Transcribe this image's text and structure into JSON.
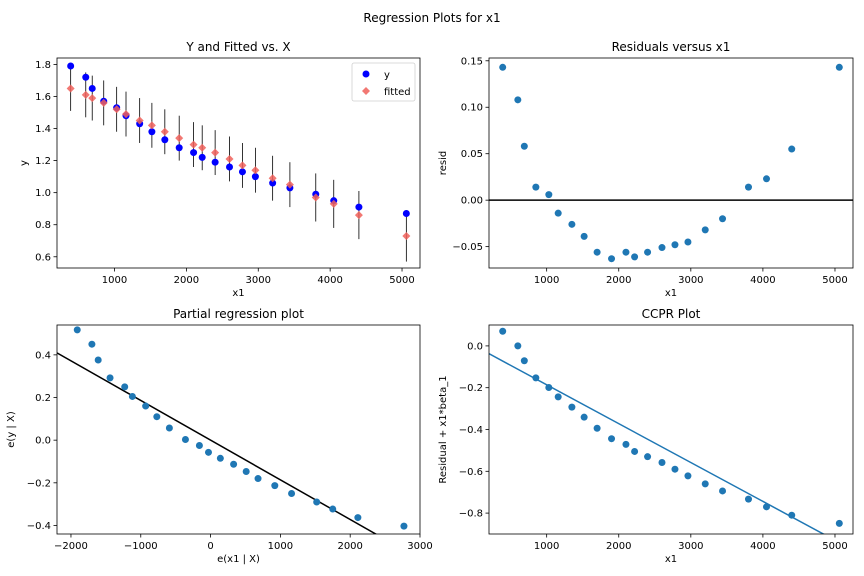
{
  "suptitle": "Regression Plots for x1",
  "colors": {
    "y": "#0000ff",
    "fitted": "#f0605a",
    "scatter": "#1f77b4",
    "line_black": "#000000",
    "line_blue": "#1f77b4"
  },
  "chart_data": [
    {
      "id": "yfit",
      "type": "scatter",
      "title": "Y and Fitted vs. X",
      "xlabel": "x1",
      "ylabel": "y",
      "xlim": [
        200,
        5250
      ],
      "ylim": [
        0.53,
        1.84
      ],
      "xticks": [
        1000,
        2000,
        3000,
        4000,
        5000
      ],
      "yticks": [
        0.6,
        0.8,
        1.0,
        1.2,
        1.4,
        1.6,
        1.8
      ],
      "ytick_labels": [
        "0.6",
        "0.8",
        "1.0",
        "1.2",
        "1.4",
        "1.6",
        "1.8"
      ],
      "legend": {
        "position": "top-right",
        "entries": [
          "y",
          "fitted"
        ]
      },
      "x": [
        390,
        600,
        690,
        850,
        1030,
        1160,
        1350,
        1520,
        1700,
        1900,
        2100,
        2220,
        2400,
        2600,
        2780,
        2960,
        3200,
        3440,
        3800,
        4050,
        4400,
        5060
      ],
      "series": [
        {
          "name": "y",
          "marker": "circle",
          "values": [
            1.79,
            1.72,
            1.65,
            1.57,
            1.53,
            1.48,
            1.43,
            1.38,
            1.33,
            1.28,
            1.25,
            1.22,
            1.19,
            1.16,
            1.13,
            1.1,
            1.06,
            1.03,
            0.99,
            0.95,
            0.91,
            0.87
          ]
        },
        {
          "name": "fitted",
          "marker": "diamond",
          "values": [
            1.65,
            1.61,
            1.59,
            1.56,
            1.52,
            1.49,
            1.45,
            1.42,
            1.38,
            1.34,
            1.3,
            1.28,
            1.25,
            1.21,
            1.17,
            1.14,
            1.09,
            1.05,
            0.97,
            0.93,
            0.86,
            0.73
          ]
        }
      ],
      "error_bars": {
        "on": "fitted",
        "half_width": [
          0.14,
          0.14,
          0.14,
          0.14,
          0.14,
          0.14,
          0.14,
          0.14,
          0.14,
          0.14,
          0.14,
          0.14,
          0.14,
          0.14,
          0.14,
          0.14,
          0.14,
          0.14,
          0.15,
          0.15,
          0.15,
          0.16
        ]
      }
    },
    {
      "id": "resid",
      "type": "scatter",
      "title": "Residuals versus x1",
      "xlabel": "x1",
      "ylabel": "resid",
      "xlim": [
        200,
        5250
      ],
      "ylim": [
        -0.073,
        0.153
      ],
      "xticks": [
        1000,
        2000,
        3000,
        4000,
        5000
      ],
      "yticks": [
        -0.05,
        0.0,
        0.05,
        0.1,
        0.15
      ],
      "ytick_labels": [
        "−0.05",
        "0.00",
        "0.05",
        "0.10",
        "0.15"
      ],
      "hline": 0,
      "x": [
        390,
        600,
        690,
        850,
        1030,
        1160,
        1350,
        1520,
        1700,
        1900,
        2100,
        2220,
        2400,
        2600,
        2780,
        2960,
        3200,
        3440,
        3800,
        4050,
        4400,
        5060
      ],
      "values": [
        0.143,
        0.108,
        0.058,
        0.014,
        0.006,
        -0.014,
        -0.026,
        -0.039,
        -0.056,
        -0.063,
        -0.056,
        -0.061,
        -0.056,
        -0.051,
        -0.048,
        -0.045,
        -0.032,
        -0.02,
        0.014,
        0.023,
        0.055,
        0.143
      ]
    },
    {
      "id": "partial",
      "type": "scatter",
      "title": "Partial regression plot",
      "xlabel": "e(x1 | X)",
      "ylabel": "e(y | X)",
      "xlim": [
        -2200,
        3000
      ],
      "ylim": [
        -0.44,
        0.54
      ],
      "xticks": [
        -2000,
        -1000,
        0,
        1000,
        2000,
        3000
      ],
      "xtick_labels": [
        "−2000",
        "−1000",
        "0",
        "1000",
        "2000",
        "3000"
      ],
      "yticks": [
        -0.4,
        -0.2,
        0.0,
        0.2,
        0.4
      ],
      "ytick_labels": [
        "−0.4",
        "−0.2",
        "0.0",
        "0.2",
        "0.4"
      ],
      "fit_line": {
        "slope": -0.000186,
        "intercept": -0.0,
        "color": "line_black"
      },
      "x": [
        -1910,
        -1700,
        -1610,
        -1440,
        -1230,
        -1120,
        -930,
        -770,
        -590,
        -360,
        -160,
        -30,
        140,
        330,
        510,
        680,
        920,
        1160,
        1520,
        1750,
        2110,
        2770
      ],
      "values": [
        0.517,
        0.45,
        0.376,
        0.292,
        0.25,
        0.205,
        0.16,
        0.11,
        0.057,
        0.003,
        -0.025,
        -0.057,
        -0.085,
        -0.113,
        -0.147,
        -0.18,
        -0.213,
        -0.25,
        -0.29,
        -0.323,
        -0.363,
        -0.403
      ]
    },
    {
      "id": "ccpr",
      "type": "scatter",
      "title": "CCPR Plot",
      "xlabel": "x1",
      "ylabel": "Residual + x1*beta_1",
      "xlim": [
        200,
        5250
      ],
      "ylim": [
        -0.9,
        0.1
      ],
      "xticks": [
        1000,
        2000,
        3000,
        4000,
        5000
      ],
      "yticks": [
        -0.8,
        -0.6,
        -0.4,
        -0.2,
        0.0
      ],
      "ytick_labels": [
        "−0.8",
        "−0.6",
        "−0.4",
        "−0.2",
        "0.0"
      ],
      "fit_line": {
        "slope": -0.000186,
        "intercept": 0.0,
        "color": "line_blue"
      },
      "x": [
        390,
        600,
        690,
        850,
        1030,
        1160,
        1350,
        1520,
        1700,
        1900,
        2100,
        2220,
        2400,
        2600,
        2780,
        2960,
        3200,
        3440,
        3800,
        4050,
        4400,
        5060
      ],
      "values": [
        0.07,
        0.0,
        -0.071,
        -0.153,
        -0.199,
        -0.244,
        -0.293,
        -0.341,
        -0.394,
        -0.444,
        -0.471,
        -0.505,
        -0.53,
        -0.558,
        -0.59,
        -0.622,
        -0.66,
        -0.694,
        -0.733,
        -0.77,
        -0.81,
        -0.849
      ]
    }
  ]
}
